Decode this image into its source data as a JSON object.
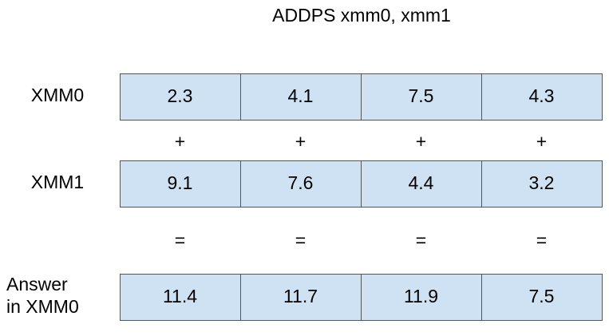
{
  "title": "ADDPS xmm0, xmm1",
  "rows": [
    {
      "label": [
        "XMM0"
      ],
      "cells": [
        "2.3",
        "4.1",
        "7.5",
        "4.3"
      ]
    },
    {
      "label": [
        "XMM1"
      ],
      "cells": [
        "9.1",
        "7.6",
        "4.4",
        "3.2"
      ]
    },
    {
      "label": [
        "Answer",
        "in XMM0"
      ],
      "cells": [
        "11.4",
        "11.7",
        "11.9",
        "7.5"
      ]
    }
  ],
  "operators": [
    [
      "+",
      "+",
      "+",
      "+"
    ],
    [
      "=",
      "=",
      "=",
      "="
    ]
  ]
}
